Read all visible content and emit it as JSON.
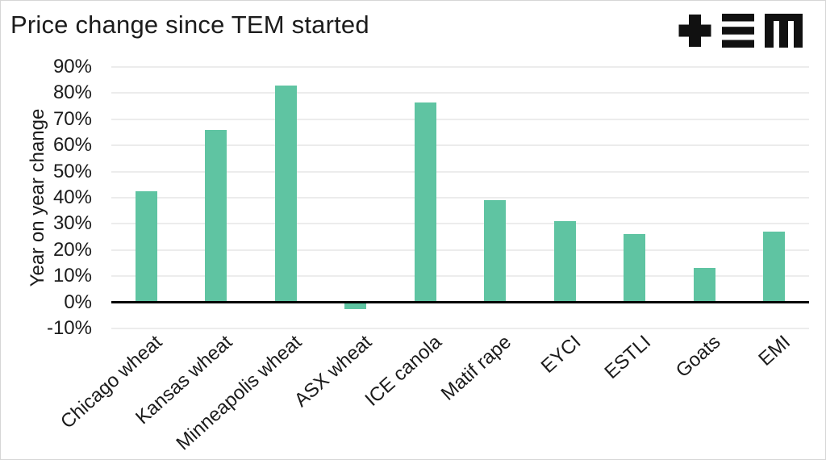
{
  "title": "Price change since TEM started",
  "logo": {
    "alt": "TEM"
  },
  "chart_data": {
    "type": "bar",
    "title": "Price change since TEM started",
    "xlabel": "",
    "ylabel": "Year on year change",
    "categories": [
      "Chicago wheat",
      "Kansas wheat",
      "Minneapolis wheat",
      "ASX wheat",
      "ICE canola",
      "Matif rape",
      "EYCI",
      "ESTLI",
      "Goats",
      "EMI"
    ],
    "values": [
      42.5,
      66,
      83,
      -2.5,
      76.5,
      39,
      31,
      26,
      13,
      27
    ],
    "ylim": [
      -10,
      90
    ],
    "ytick_step": 10,
    "ytick_suffix": "%",
    "grid": "horizontal",
    "legend": "none",
    "colors": {
      "bar": "#5fc4a2",
      "zero_axis": "#000000",
      "gridline": "#ececec",
      "text": "#1b1b1b",
      "background": "#ffffff",
      "border": "#d6d6d6",
      "logo": "#111111"
    }
  }
}
